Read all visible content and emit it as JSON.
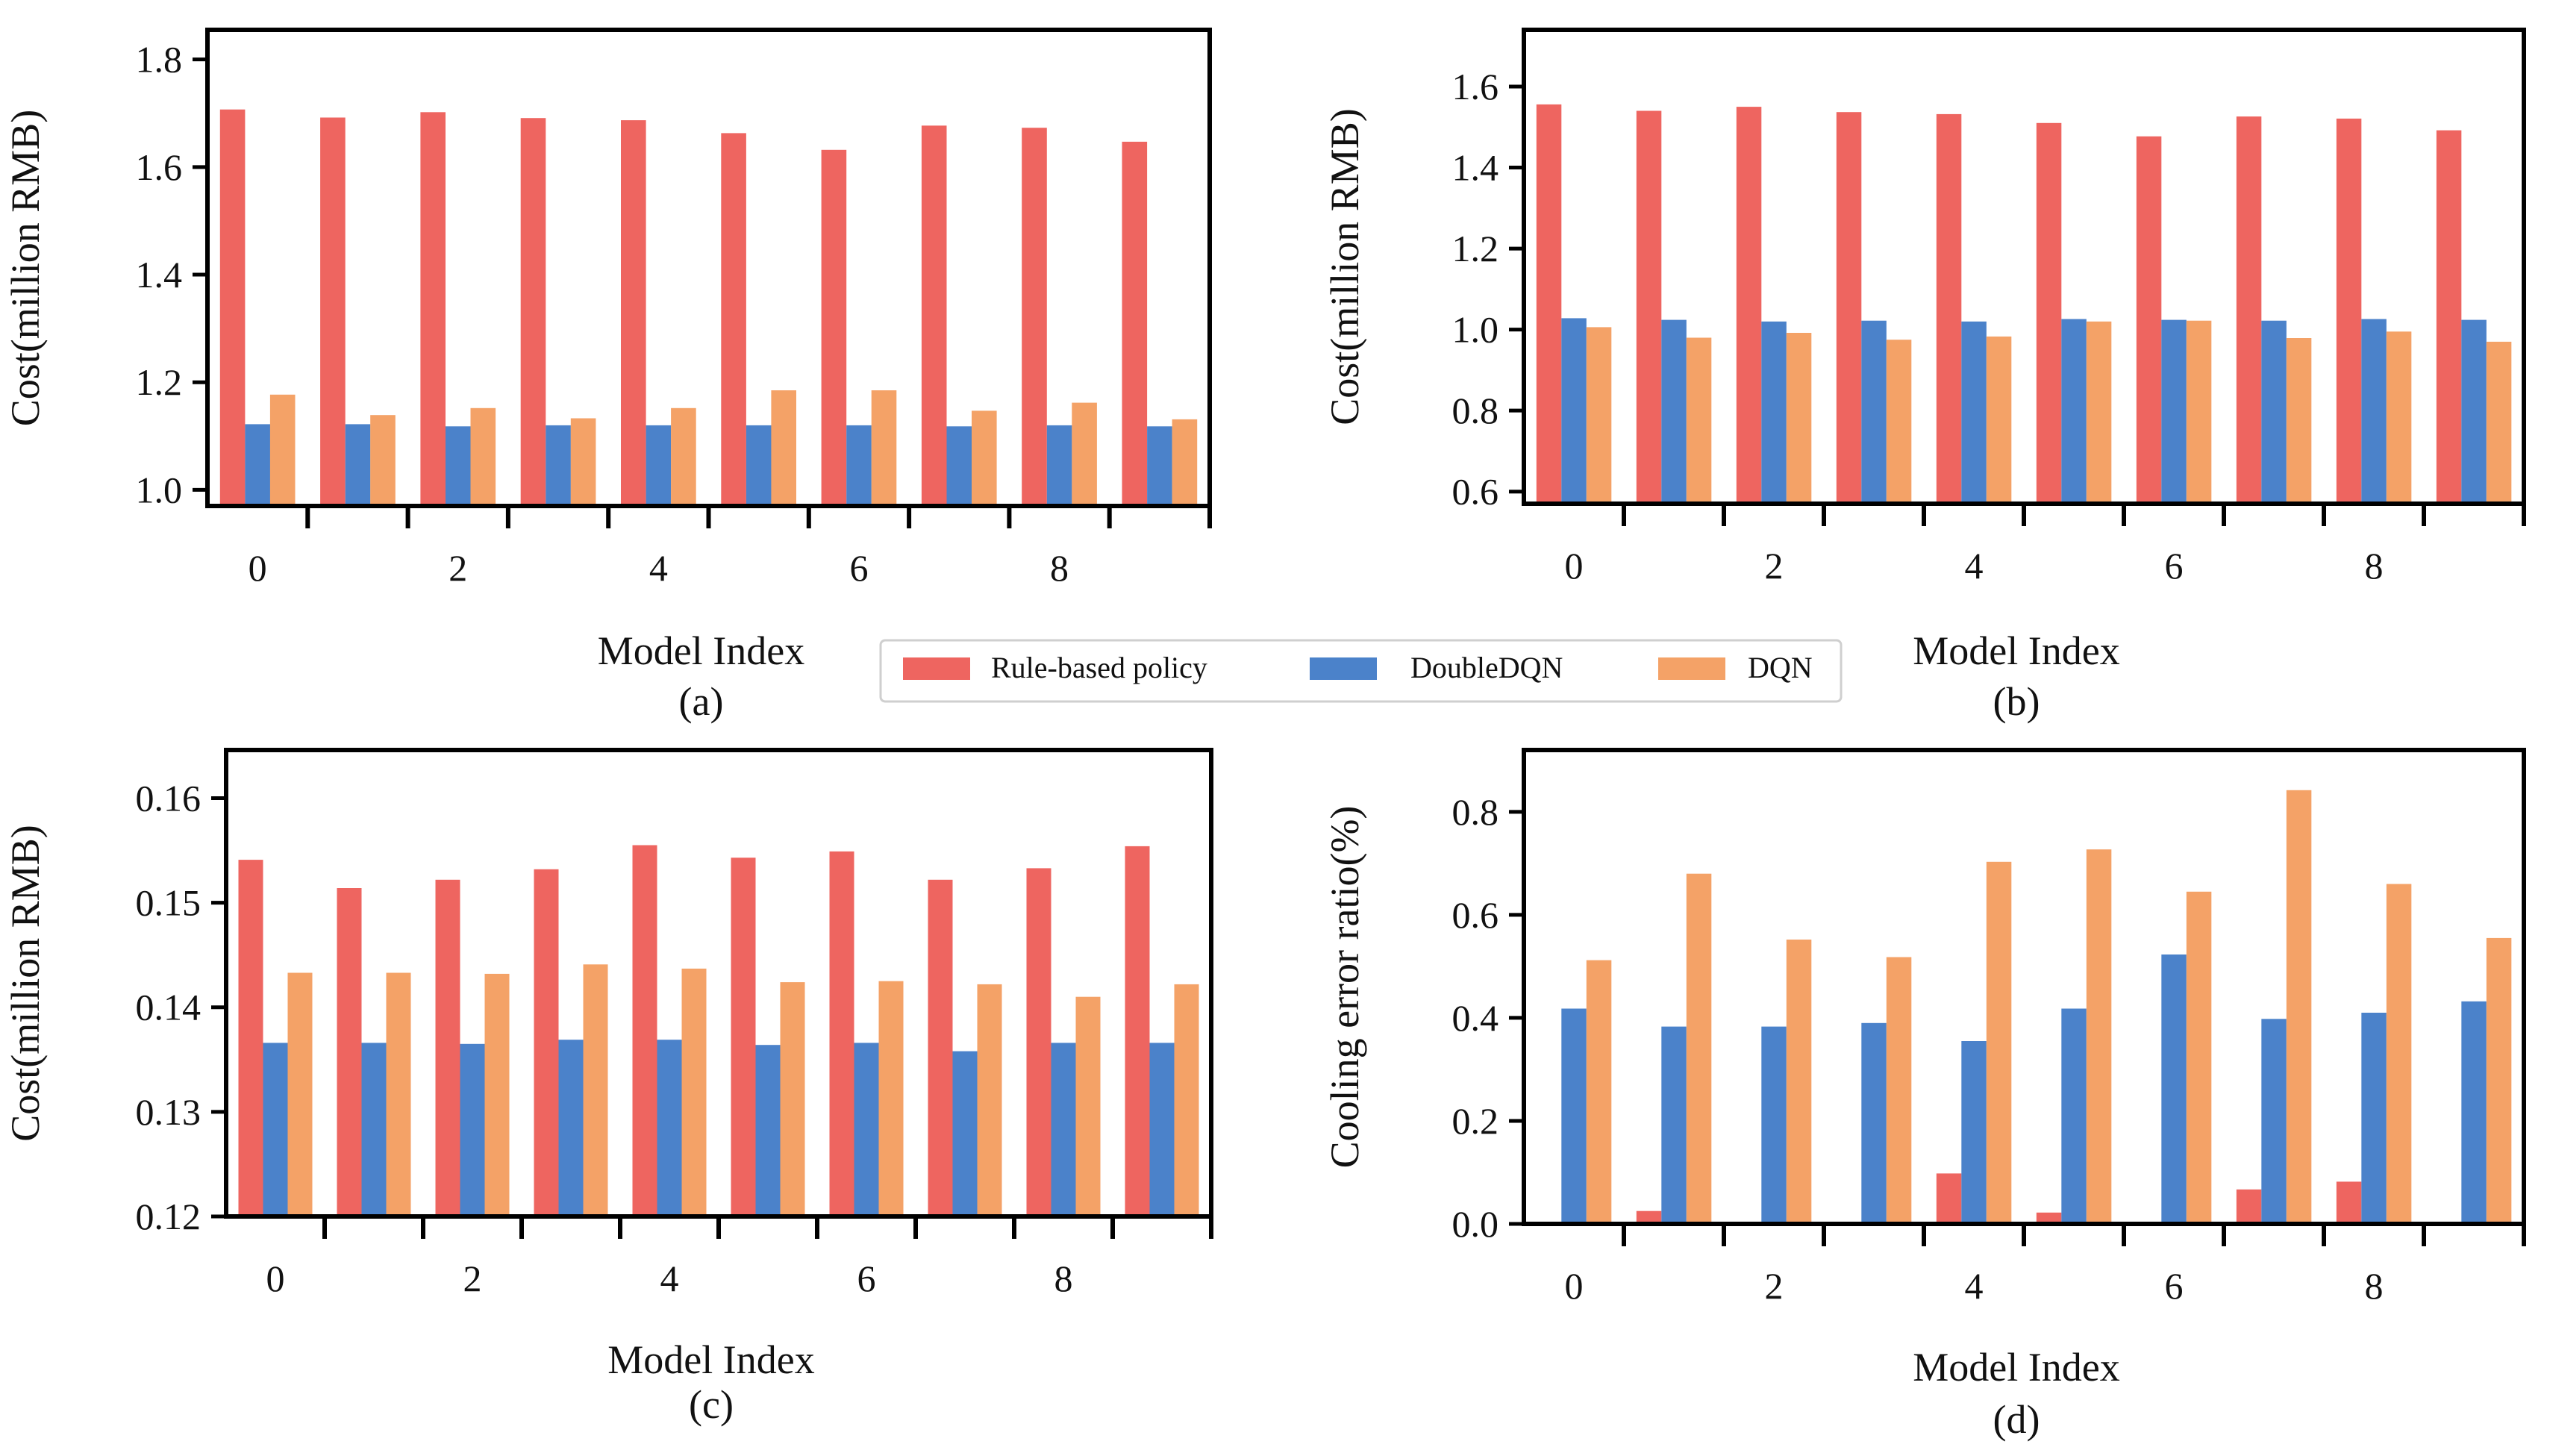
{
  "legend": {
    "items": [
      {
        "label": "Rule-based policy",
        "color": "#EE6560"
      },
      {
        "label": "DoubleDQN",
        "color": "#4B82CA"
      },
      {
        "label": "DQN",
        "color": "#F4A267"
      }
    ]
  },
  "chart_data": [
    {
      "id": "a",
      "type": "bar",
      "caption": "(a)",
      "xlabel": "Model Index",
      "ylabel": "Cost(million RMB)",
      "ylim": [
        0.97,
        1.855
      ],
      "yticks": [
        1.0,
        1.2,
        1.4,
        1.6,
        1.8
      ],
      "ytick_labels": [
        "1.0",
        "1.2",
        "1.4",
        "1.6",
        "1.8"
      ],
      "xticks": [
        0,
        2,
        4,
        6,
        8
      ],
      "xtick_labels": [
        "0",
        "2",
        "4",
        "6",
        "8"
      ],
      "categories": [
        0,
        1,
        2,
        3,
        4,
        5,
        6,
        7,
        8,
        9
      ],
      "series": [
        {
          "name": "Rule-based policy",
          "values": [
            1.707,
            1.692,
            1.702,
            1.691,
            1.687,
            1.663,
            1.632,
            1.677,
            1.673,
            1.647
          ]
        },
        {
          "name": "DoubleDQN",
          "values": [
            1.122,
            1.122,
            1.118,
            1.12,
            1.12,
            1.12,
            1.12,
            1.118,
            1.12,
            1.118
          ]
        },
        {
          "name": "DQN",
          "values": [
            1.177,
            1.139,
            1.152,
            1.133,
            1.152,
            1.185,
            1.185,
            1.147,
            1.162,
            1.131
          ]
        }
      ]
    },
    {
      "id": "b",
      "type": "bar",
      "caption": "(b)",
      "xlabel": "Model Index",
      "ylabel": "Cost(million RMB)",
      "ylim": [
        0.57,
        1.74
      ],
      "yticks": [
        0.6,
        0.8,
        1.0,
        1.2,
        1.4,
        1.6
      ],
      "ytick_labels": [
        "0.6",
        "0.8",
        "1.0",
        "1.2",
        "1.4",
        "1.6"
      ],
      "xticks": [
        0,
        2,
        4,
        6,
        8
      ],
      "xtick_labels": [
        "0",
        "2",
        "4",
        "6",
        "8"
      ],
      "categories": [
        0,
        1,
        2,
        3,
        4,
        5,
        6,
        7,
        8,
        9
      ],
      "series": [
        {
          "name": "Rule-based policy",
          "values": [
            1.556,
            1.54,
            1.55,
            1.537,
            1.532,
            1.51,
            1.477,
            1.526,
            1.521,
            1.492
          ]
        },
        {
          "name": "DoubleDQN",
          "values": [
            1.028,
            1.024,
            1.02,
            1.022,
            1.02,
            1.026,
            1.024,
            1.022,
            1.026,
            1.024
          ]
        },
        {
          "name": "DQN",
          "values": [
            1.006,
            0.98,
            0.992,
            0.975,
            0.983,
            1.02,
            1.022,
            0.979,
            0.995,
            0.97
          ]
        }
      ]
    },
    {
      "id": "c",
      "type": "bar",
      "caption": "(c)",
      "xlabel": "Model Index",
      "ylabel": "Cost(million RMB)",
      "ylim": [
        0.12,
        0.1646
      ],
      "yticks": [
        0.12,
        0.13,
        0.14,
        0.15,
        0.16
      ],
      "ytick_labels": [
        "0.12",
        "0.13",
        "0.14",
        "0.15",
        "0.16"
      ],
      "xticks": [
        0,
        2,
        4,
        6,
        8
      ],
      "xtick_labels": [
        "0",
        "2",
        "4",
        "6",
        "8"
      ],
      "categories": [
        0,
        1,
        2,
        3,
        4,
        5,
        6,
        7,
        8,
        9
      ],
      "series": [
        {
          "name": "Rule-based policy",
          "values": [
            0.1541,
            0.1514,
            0.1522,
            0.1532,
            0.1555,
            0.1543,
            0.1549,
            0.1522,
            0.1533,
            0.1554
          ]
        },
        {
          "name": "DoubleDQN",
          "values": [
            0.1366,
            0.1366,
            0.1365,
            0.1369,
            0.1369,
            0.1364,
            0.1366,
            0.1358,
            0.1366,
            0.1366
          ]
        },
        {
          "name": "DQN",
          "values": [
            0.1433,
            0.1433,
            0.1432,
            0.1441,
            0.1437,
            0.1424,
            0.1425,
            0.1422,
            0.141,
            0.1422
          ]
        }
      ]
    },
    {
      "id": "d",
      "type": "bar",
      "caption": "(d)",
      "xlabel": "Model Index",
      "ylabel": "Cooling error ratio(%)",
      "ylim": [
        0.0,
        0.92
      ],
      "yticks": [
        0.0,
        0.2,
        0.4,
        0.6,
        0.8
      ],
      "ytick_labels": [
        "0.0",
        "0.2",
        "0.4",
        "0.6",
        "0.8"
      ],
      "xticks": [
        0,
        2,
        4,
        6,
        8
      ],
      "xtick_labels": [
        "0",
        "2",
        "4",
        "6",
        "8"
      ],
      "categories": [
        0,
        1,
        2,
        3,
        4,
        5,
        6,
        7,
        8,
        9
      ],
      "series": [
        {
          "name": "Rule-based policy",
          "values": [
            0.0,
            0.025,
            0.0,
            0.0,
            0.098,
            0.022,
            0.0,
            0.067,
            0.082,
            0.0
          ]
        },
        {
          "name": "DoubleDQN",
          "values": [
            0.418,
            0.383,
            0.383,
            0.39,
            0.355,
            0.418,
            0.523,
            0.398,
            0.41,
            0.432
          ]
        },
        {
          "name": "DQN",
          "values": [
            0.512,
            0.68,
            0.552,
            0.518,
            0.703,
            0.727,
            0.645,
            0.842,
            0.66,
            0.555
          ]
        }
      ]
    }
  ]
}
